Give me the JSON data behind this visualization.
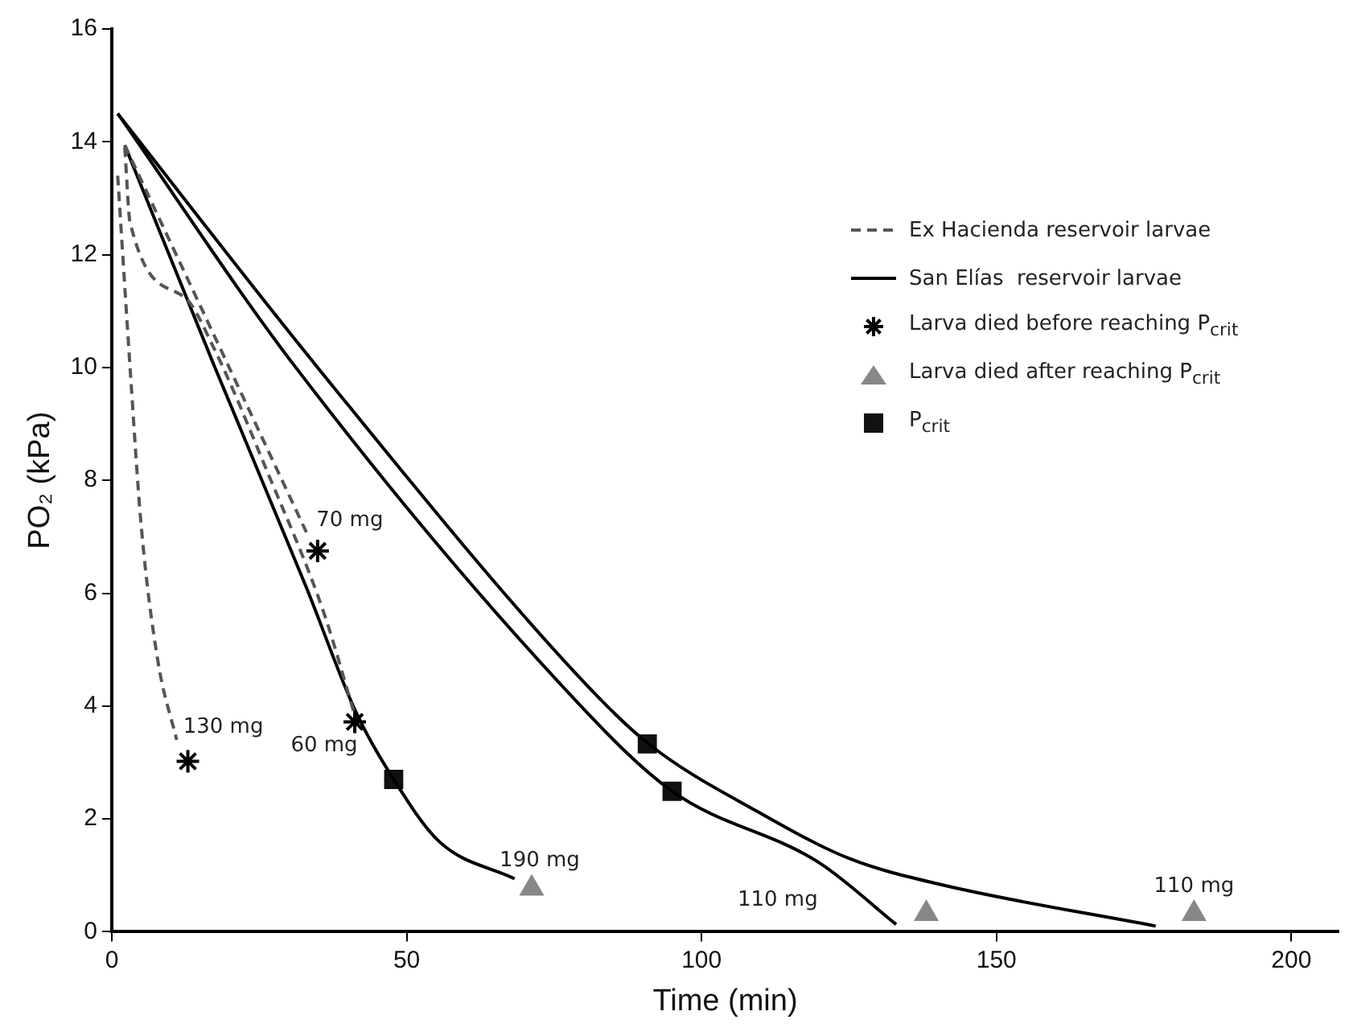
{
  "chart_data": {
    "type": "line",
    "xlabel": "Time (min)",
    "ylabel": "PO₂ (kPa)",
    "xlim": [
      0,
      208
    ],
    "ylim": [
      0,
      16
    ],
    "xticks": [
      0,
      50,
      100,
      150,
      200
    ],
    "yticks": [
      0,
      2,
      4,
      6,
      8,
      10,
      12,
      14,
      16
    ],
    "grid": false,
    "legend": "top right",
    "series": [
      {
        "name": "Ex Hacienda reservoir larvae",
        "type": "line",
        "line_style": "dashed",
        "marker": "none",
        "color": "#555555",
        "x": [
          2.2,
          20,
          33
        ],
        "values": [
          13.94,
          9.98,
          7.08
        ]
      },
      {
        "type": "line",
        "line_style": "dashed",
        "marker": "none",
        "color": "#555555",
        "x": [
          2.2,
          3.1,
          12.4,
          17.1,
          26.5,
          35.9,
          41
        ],
        "values": [
          13.9,
          12.57,
          11.24,
          10.39,
          8.12,
          5.67,
          3.91
        ]
      },
      {
        "type": "line",
        "line_style": "dashed",
        "marker": "none",
        "color": "#555555",
        "x": [
          1,
          3.1,
          5,
          7.8,
          11
        ],
        "values": [
          13.4,
          10,
          7.18,
          4.81,
          3.4
        ]
      },
      {
        "name": "San Elías  reservoir larvae",
        "type": "line",
        "line_style": "solid",
        "marker": "none",
        "color": "#000000",
        "x": [
          1,
          34.9,
          79,
          91,
          110,
          125,
          140,
          177
        ],
        "values": [
          14.5,
          10,
          4.54,
          3.33,
          2.1,
          1.3,
          0.85,
          0.1
        ]
      },
      {
        "type": "line",
        "line_style": "solid",
        "marker": "none",
        "color": "#000000",
        "x": [
          1,
          31.2,
          79,
          95,
          120,
          133
        ],
        "values": [
          14.5,
          10,
          4.06,
          2.49,
          1.22,
          0.13
        ]
      },
      {
        "type": "line",
        "line_style": "solid",
        "marker": "none",
        "color": "#000000",
        "x": [
          2.2,
          17.1,
          33,
          41.5,
          47.8,
          55.5,
          68.3
        ],
        "values": [
          13.94,
          10.1,
          6.1,
          3.87,
          2.7,
          1.6,
          0.94
        ]
      },
      {
        "name": "Larva died before reaching P$_{crit}$",
        "type": "scatter",
        "marker": "cross",
        "color": "#000000",
        "x": [
          34.9,
          41.2,
          12.9
        ],
        "values": [
          6.75,
          3.72,
          3.02
        ]
      },
      {
        "name": "Larva died after reaching P$_{crit}$",
        "type": "scatter",
        "marker": "triangle",
        "color": "#888888",
        "x": [
          71.2,
          138.1,
          183.5
        ],
        "values": [
          0.77,
          0.32,
          0.32
        ]
      },
      {
        "name": "P$_{crit}$",
        "type": "scatter",
        "marker": "square",
        "color": "#111111",
        "x": [
          47.8,
          90.8,
          95
        ],
        "values": [
          2.7,
          3.33,
          2.49
        ]
      }
    ],
    "annotations": [
      {
        "text": "70 mg",
        "x": 34.9,
        "y": 6.75
      },
      {
        "text": "130 mg",
        "x": 12.9,
        "y": 3.02
      },
      {
        "text": "60 mg",
        "x": 41.2,
        "y": 3.72
      },
      {
        "text": "190 mg",
        "x": 71.2,
        "y": 0.77
      },
      {
        "text": "110 mg",
        "x": 120,
        "y": 1.22
      },
      {
        "text": "110 mg",
        "x": 183.5,
        "y": 0.32
      }
    ]
  }
}
